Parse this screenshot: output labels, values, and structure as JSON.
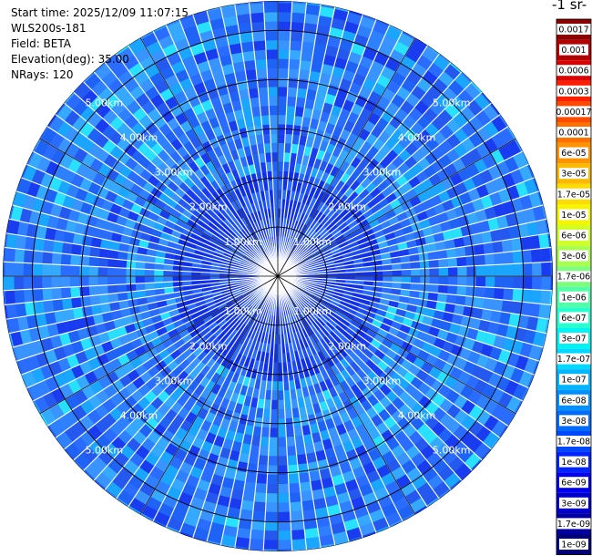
{
  "header": {
    "start_time": "Start time: 2025/12/09 11:07:15",
    "instrument": "WLS200s-181",
    "field": "Field: BETA",
    "elevation": "Elevation(deg): 35.00",
    "nrays": "NRays: 120"
  },
  "colorbar": {
    "unit_label": "-1 sr-",
    "entries": [
      {
        "label": "0.0017",
        "color": "#8b0000"
      },
      {
        "label": "0.001",
        "color": "#b00000"
      },
      {
        "label": "0.0006",
        "color": "#dc0000"
      },
      {
        "label": "0.0003",
        "color": "#ff1e00"
      },
      {
        "label": "0.00017",
        "color": "#ff4a00"
      },
      {
        "label": "0.0001",
        "color": "#ff7000"
      },
      {
        "label": "6e-05",
        "color": "#ff9400"
      },
      {
        "label": "3e-05",
        "color": "#ffb800"
      },
      {
        "label": "1.7e-05",
        "color": "#ffdc00"
      },
      {
        "label": "1e-05",
        "color": "#f5f500"
      },
      {
        "label": "6e-06",
        "color": "#d0ff28"
      },
      {
        "label": "3e-06",
        "color": "#a8ff50"
      },
      {
        "label": "1.7e-06",
        "color": "#7cff7a"
      },
      {
        "label": "1e-06",
        "color": "#50ffa8"
      },
      {
        "label": "6e-07",
        "color": "#28ffd0"
      },
      {
        "label": "3e-07",
        "color": "#00f4f4"
      },
      {
        "label": "1.7e-07",
        "color": "#00d8ff"
      },
      {
        "label": "1e-07",
        "color": "#00b4ff"
      },
      {
        "label": "6e-08",
        "color": "#0090ff"
      },
      {
        "label": "3e-08",
        "color": "#006cff"
      },
      {
        "label": "1.7e-08",
        "color": "#0048ff"
      },
      {
        "label": "1e-08",
        "color": "#0024ff"
      },
      {
        "label": "6e-09",
        "color": "#0000f0"
      },
      {
        "label": "3e-09",
        "color": "#0000c8"
      },
      {
        "label": "1.7e-09",
        "color": "#0000a0"
      },
      {
        "label": "1e-09",
        "color": "#00007c"
      }
    ]
  },
  "chart_data": {
    "type": "heatmap",
    "projection": "polar-ppi",
    "range_unit": "km",
    "range_max": 5.6,
    "range_rings": [
      1,
      2,
      3,
      4,
      5
    ],
    "range_labels": [
      "1.00km",
      "2.00km",
      "3.00km",
      "4.00km",
      "5.00km"
    ],
    "azimuth_spokes_deg": [
      0,
      30,
      60,
      90,
      120,
      150,
      180,
      210,
      240,
      270,
      300,
      330
    ],
    "n_rays": 120,
    "value_range": [
      "1e-09",
      "0.0017"
    ],
    "dominant_values": [
      "3e-08",
      "6e-08",
      "1e-07"
    ]
  }
}
